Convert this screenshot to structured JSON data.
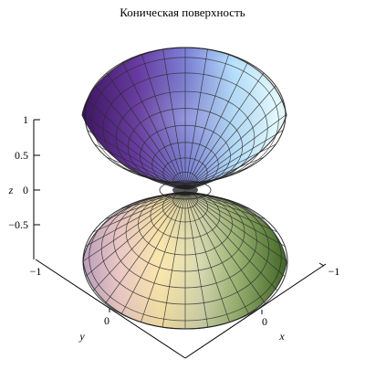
{
  "chart_data": {
    "type": "surface",
    "title": "Коническая поверхность",
    "surface": "z^2 = x^2 + y^2",
    "x_range": [
      -1,
      1
    ],
    "y_range": [
      -1,
      1
    ],
    "z_range": [
      -1,
      1
    ],
    "x_label": "x",
    "y_label": "y",
    "z_label": "z",
    "x_ticks": [
      "0",
      "−1"
    ],
    "y_ticks": [
      "−1",
      "0"
    ],
    "z_ticks": [
      "1",
      "0.5",
      "0",
      "−0.5"
    ],
    "grid": true,
    "colors": {
      "upper": [
        "#4b1c7a",
        "#6f63c3",
        "#a8d9ff",
        "#d8ffff"
      ],
      "lower": [
        "#c89bc4",
        "#ffe5a0",
        "#b6c98b",
        "#4f7d2d"
      ]
    }
  }
}
